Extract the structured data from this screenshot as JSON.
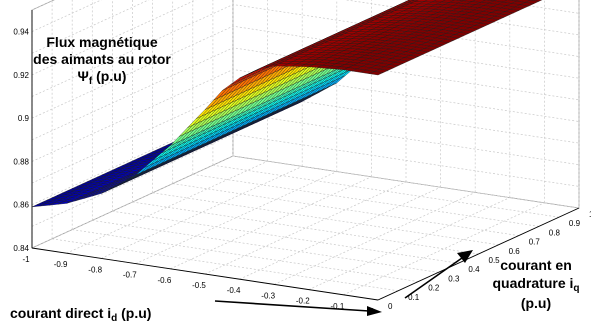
{
  "chart_data": {
    "type": "surface3d",
    "zlabel": {
      "line1": "Flux magnétique",
      "line2": "des aimants au rotor",
      "symbol": "Ψ",
      "subscript": "f",
      "unit": " (p.u)"
    },
    "xlabel": {
      "text": "courant direct i",
      "subscript": "d",
      "unit": " (p.u)"
    },
    "ylabel": {
      "line1": "courant en",
      "line2": "quadrature i",
      "subscript": "q",
      "line3": "(p.u)"
    },
    "x_ticks": [
      "-1",
      "-0.9",
      "-0.8",
      "-0.7",
      "-0.6",
      "-0.5",
      "-0.4",
      "-0.3",
      "-0.2",
      "-0.1",
      "0"
    ],
    "y_ticks": [
      "0",
      "0.1",
      "0.2",
      "0.3",
      "0.4",
      "0.5",
      "0.6",
      "0.7",
      "0.8",
      "0.9",
      "1"
    ],
    "z_ticks": [
      "0.84",
      "0.86",
      "0.88",
      "0.9",
      "0.92",
      "0.94"
    ],
    "xlim": [
      -1,
      0
    ],
    "ylim": [
      0,
      1
    ],
    "zlim": [
      0.84,
      0.95
    ],
    "z_profile": {
      "x": [
        -1.0,
        -0.9,
        -0.8,
        -0.7,
        -0.6,
        -0.5,
        -0.45,
        -0.4,
        -0.35,
        -0.3,
        -0.2,
        -0.1,
        0.0
      ],
      "z": [
        0.859,
        0.863,
        0.87,
        0.881,
        0.897,
        0.916,
        0.926,
        0.933,
        0.938,
        0.941,
        0.943,
        0.944,
        0.944
      ]
    },
    "colormap": "jet",
    "grid": true
  }
}
